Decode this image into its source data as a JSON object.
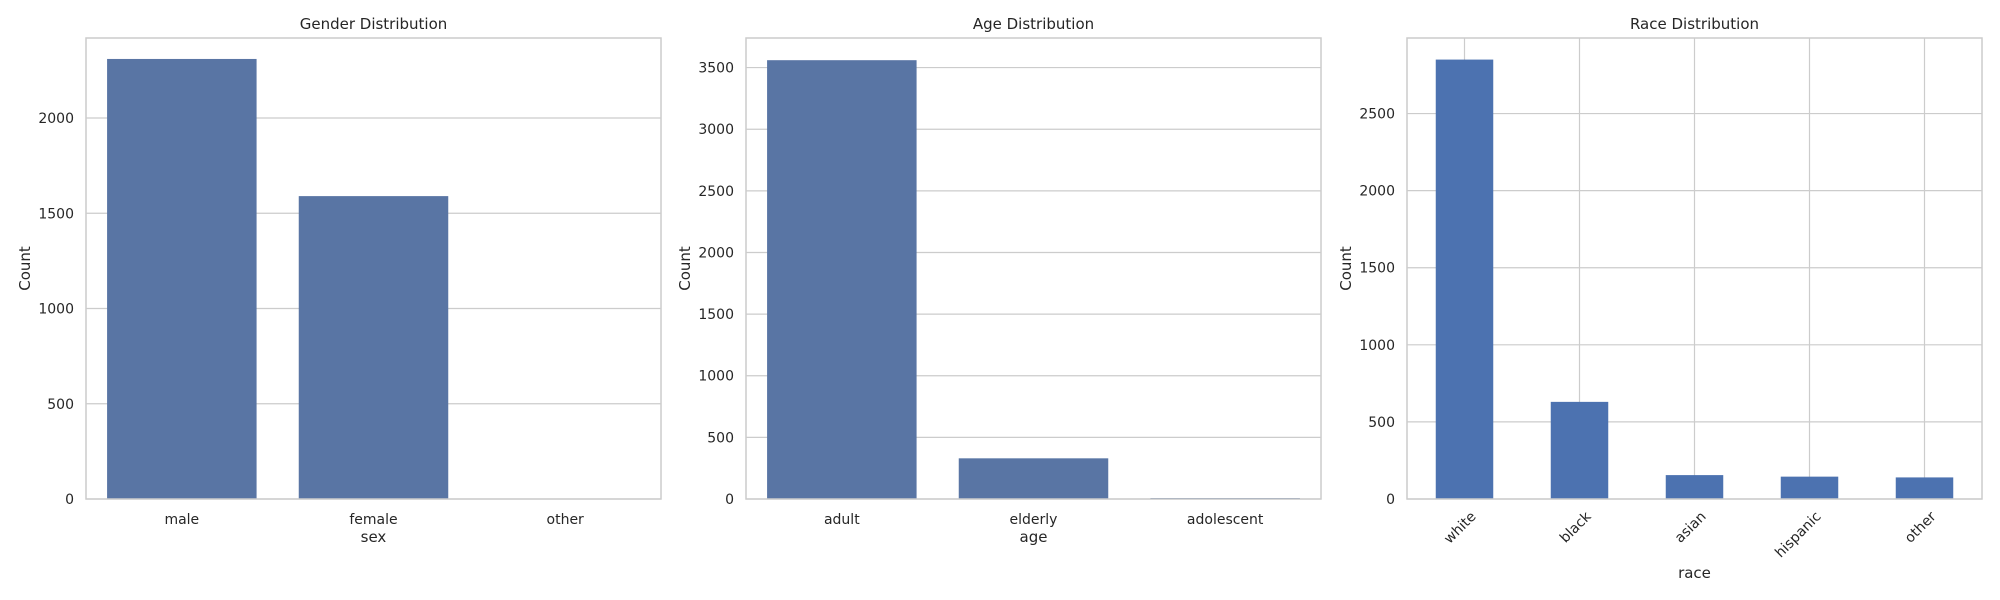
{
  "chart_data": [
    {
      "type": "bar",
      "title": "Gender Distribution",
      "xlabel": "sex",
      "ylabel": "Count",
      "categories": [
        "male",
        "female",
        "other"
      ],
      "values": [
        2310,
        1590,
        2
      ],
      "ylim": [
        0,
        2420
      ],
      "yticks": [
        0,
        500,
        1000,
        1500,
        2000
      ],
      "grid": {
        "x": false,
        "y": true
      },
      "bar_color": "#5975a4",
      "tick_rotation": 0
    },
    {
      "type": "bar",
      "title": "Age Distribution",
      "xlabel": "age",
      "ylabel": "Count",
      "categories": [
        "adult",
        "elderly",
        "adolescent"
      ],
      "values": [
        3560,
        330,
        8
      ],
      "ylim": [
        0,
        3740
      ],
      "yticks": [
        0,
        500,
        1000,
        1500,
        2000,
        2500,
        3000,
        3500
      ],
      "grid": {
        "x": false,
        "y": true
      },
      "bar_color": "#5975a4",
      "tick_rotation": 0
    },
    {
      "type": "bar",
      "title": "Race Distribution",
      "xlabel": "race",
      "ylabel": "Count",
      "categories": [
        "white",
        "black",
        "asian",
        "hispanic",
        "other"
      ],
      "values": [
        2850,
        630,
        155,
        145,
        140
      ],
      "ylim": [
        0,
        2990
      ],
      "yticks": [
        0,
        500,
        1000,
        1500,
        2000,
        2500
      ],
      "grid": {
        "x": true,
        "y": true
      },
      "bar_color": "#4c72b0",
      "tick_rotation": -45
    }
  ]
}
